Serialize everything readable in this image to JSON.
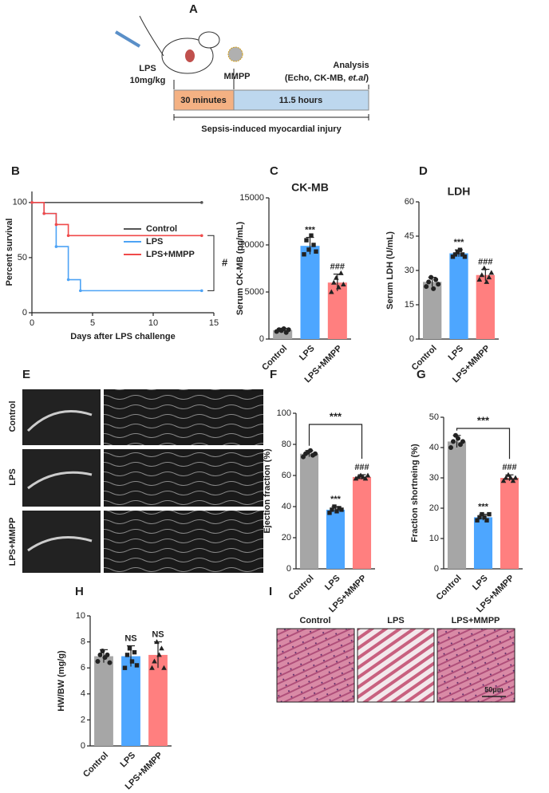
{
  "panel_labels": [
    "A",
    "B",
    "C",
    "D",
    "E",
    "F",
    "G",
    "H",
    "I"
  ],
  "timeline": {
    "lps": "LPS",
    "dose": "10mg/kg",
    "mmpp": "MMPP",
    "analysis": "Analysis",
    "detail_start": "(Echo, CK-MB, ",
    "detail_italic": "et.al",
    "detail_end": ")",
    "segments": [
      "30 minutes",
      "11.5 hours"
    ],
    "span": "Sepsis-induced myocardial injury"
  },
  "echo": {
    "rows": [
      "Control",
      "LPS",
      "LPS+MMPP"
    ]
  },
  "histology": {
    "columns": [
      "Control",
      "LPS",
      "LPS+MMPP"
    ],
    "scale_bar": "50μm"
  },
  "chart_data": [
    {
      "type": "line",
      "step": true,
      "xlabel": "Days after LPS challenge",
      "ylabel": "Percent survival",
      "xlim": [
        0,
        15
      ],
      "xticks": [
        0,
        5,
        10,
        15
      ],
      "ylim": [
        0,
        110
      ],
      "yticks": [
        0,
        50,
        100
      ],
      "legend": "right",
      "annotation": "#",
      "series": [
        {
          "name": "Control",
          "color": "#555555",
          "x": [
            0,
            14
          ],
          "values": [
            100,
            100
          ]
        },
        {
          "name": "LPS",
          "color": "#4da3f5",
          "x": [
            0,
            1,
            2,
            3,
            4,
            14
          ],
          "values": [
            100,
            90,
            60,
            30,
            20,
            20
          ]
        },
        {
          "name": "LPS+MMPP",
          "color": "#f04a4a",
          "x": [
            0,
            1,
            2,
            3,
            14
          ],
          "values": [
            100,
            90,
            80,
            70,
            70
          ]
        }
      ]
    },
    {
      "type": "bar",
      "title": "CK-MB",
      "ylabel": "Serum CK-MB (pg/mL)",
      "categories": [
        "Control",
        "LPS",
        "LPS+MMPP"
      ],
      "colors": [
        "#a6a6a6",
        "#4da6ff",
        "#ff7f7f"
      ],
      "values": [
        950,
        9900,
        6000
      ],
      "errors": [
        200,
        900,
        900
      ],
      "points": [
        [
          800,
          1000,
          900,
          1100,
          700,
          1000
        ],
        [
          9000,
          10500,
          9500,
          11000,
          10000,
          9300
        ],
        [
          5000,
          6000,
          6500,
          5500,
          7000,
          5800
        ]
      ],
      "annotations": [
        null,
        "***",
        "###"
      ],
      "ylim": [
        0,
        15000
      ],
      "yticks": [
        0,
        5000,
        10000,
        15000
      ]
    },
    {
      "type": "bar",
      "title": "LDH",
      "ylabel": "Serum LDH (U/mL)",
      "categories": [
        "Control",
        "LPS",
        "LPS+MMPP"
      ],
      "colors": [
        "#a6a6a6",
        "#4da6ff",
        "#ff7f7f"
      ],
      "values": [
        25,
        37.5,
        28
      ],
      "errors": [
        2,
        1.5,
        2.5
      ],
      "points": [
        [
          23,
          25,
          27,
          22,
          26,
          24
        ],
        [
          36,
          37,
          38,
          39,
          37,
          36
        ],
        [
          26,
          28,
          31,
          25,
          27,
          29
        ]
      ],
      "annotations": [
        null,
        "***",
        "###"
      ],
      "ylim": [
        0,
        60
      ],
      "yticks": [
        0,
        15,
        30,
        45,
        60
      ]
    },
    {
      "type": "bar",
      "ylabel": "Ejection fraction (%)",
      "categories": [
        "Control",
        "LPS",
        "LPS+MMPP"
      ],
      "colors": [
        "#a6a6a6",
        "#4da6ff",
        "#ff7f7f"
      ],
      "values": [
        74,
        38,
        59
      ],
      "errors": [
        2,
        2,
        1.5
      ],
      "points": [
        [
          72,
          74,
          75,
          76,
          73,
          74
        ],
        [
          36,
          38,
          40,
          37,
          39,
          38
        ],
        [
          58,
          59,
          60,
          59,
          58,
          60
        ]
      ],
      "annotations": [
        null,
        "***",
        "###"
      ],
      "bracket": "***",
      "ylim": [
        0,
        100
      ],
      "yticks": [
        0,
        20,
        40,
        60,
        80,
        100
      ]
    },
    {
      "type": "bar",
      "ylabel": "Fraction shortneing (%)",
      "categories": [
        "Control",
        "LPS",
        "LPS+MMPP"
      ],
      "colors": [
        "#a6a6a6",
        "#4da6ff",
        "#ff7f7f"
      ],
      "values": [
        42,
        17,
        30
      ],
      "errors": [
        2,
        1,
        1
      ],
      "points": [
        [
          40,
          42,
          44,
          43,
          41,
          42
        ],
        [
          16,
          17,
          18,
          17,
          16,
          18
        ],
        [
          29,
          30,
          31,
          30,
          29,
          30
        ]
      ],
      "annotations": [
        null,
        "***",
        "###"
      ],
      "bracket": "***",
      "ylim": [
        0,
        50
      ],
      "yticks": [
        0,
        10,
        20,
        30,
        40,
        50
      ]
    },
    {
      "type": "bar",
      "ylabel": "HW/BW (mg/g)",
      "categories": [
        "Control",
        "LPS",
        "LPS+MMPP"
      ],
      "colors": [
        "#a6a6a6",
        "#4da6ff",
        "#ff7f7f"
      ],
      "values": [
        6.9,
        6.9,
        7
      ],
      "errors": [
        0.5,
        0.8,
        1.0
      ],
      "points": [
        [
          6.5,
          7,
          7.3,
          6.8,
          7,
          6.4
        ],
        [
          6,
          7,
          7.5,
          6.5,
          7.2,
          6.2
        ],
        [
          6,
          6.5,
          8,
          7,
          7.5,
          6
        ]
      ],
      "annotations": [
        null,
        "NS",
        "NS"
      ],
      "ylim": [
        0,
        10
      ],
      "yticks": [
        0,
        2,
        4,
        6,
        8,
        10
      ]
    }
  ]
}
